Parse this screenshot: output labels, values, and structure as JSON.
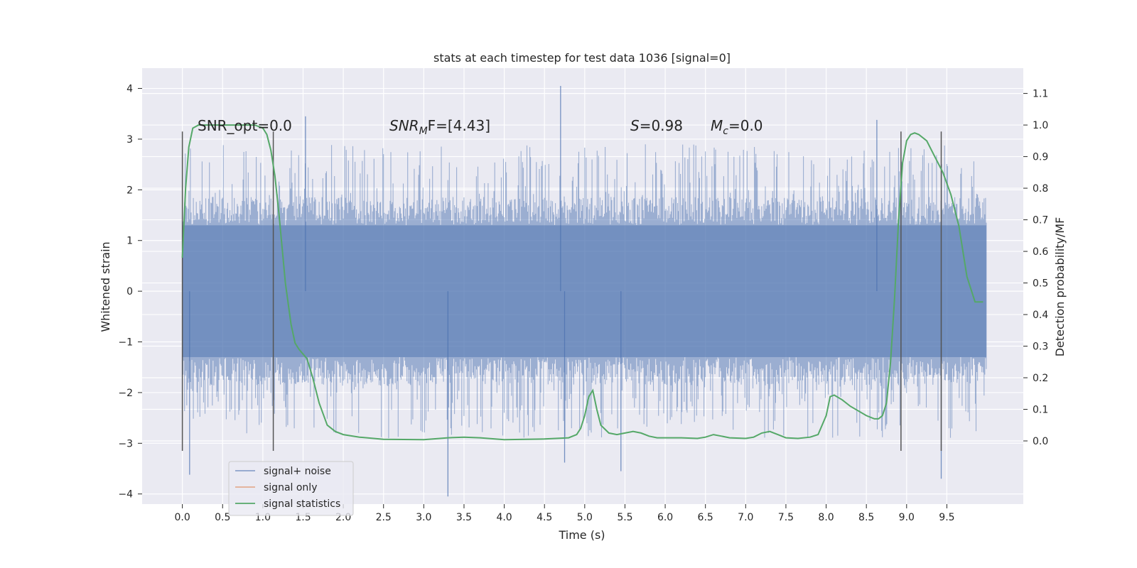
{
  "chart_data": {
    "type": "line",
    "title": "stats at each timestep for test data 1036 [signal=0]",
    "xlabel": "Time (s)",
    "ylabel": "Whitened strain",
    "y2label": "Detection probability/MF",
    "xlim": [
      -0.5,
      10.45
    ],
    "ylim": [
      -4.2,
      4.4
    ],
    "y2lim": [
      -0.2,
      1.18
    ],
    "x_ticks": [
      "0.0",
      "0.5",
      "1.0",
      "1.5",
      "2.0",
      "2.5",
      "3.0",
      "3.5",
      "4.0",
      "4.5",
      "5.0",
      "5.5",
      "6.0",
      "6.5",
      "7.0",
      "7.5",
      "8.0",
      "8.5",
      "9.0",
      "9.5"
    ],
    "x_tick_values": [
      0.0,
      0.5,
      1.0,
      1.5,
      2.0,
      2.5,
      3.0,
      3.5,
      4.0,
      4.5,
      5.0,
      5.5,
      6.0,
      6.5,
      7.0,
      7.5,
      8.0,
      8.5,
      9.0,
      9.5
    ],
    "y_ticks": [
      "−4",
      "−3",
      "−2",
      "−1",
      "0",
      "1",
      "2",
      "3",
      "4"
    ],
    "y_tick_values": [
      -4,
      -3,
      -2,
      -1,
      0,
      1,
      2,
      3,
      4
    ],
    "y2_ticks": [
      "0.0",
      "0.1",
      "0.2",
      "0.3",
      "0.4",
      "0.5",
      "0.6",
      "0.7",
      "0.8",
      "0.9",
      "1.0",
      "1.1"
    ],
    "y2_tick_values": [
      0.0,
      0.1,
      0.2,
      0.3,
      0.4,
      0.5,
      0.6,
      0.7,
      0.8,
      0.9,
      1.0,
      1.1
    ],
    "grid": true,
    "annotations": [
      {
        "id": "snr-opt",
        "text": "SNR_opt=0.0",
        "x": 0.2,
        "y": 3.15
      },
      {
        "id": "snr-mf",
        "text": "SNRMF=[4.43]",
        "x": 2.6,
        "y": 3.15
      },
      {
        "id": "s-value",
        "text": "S=0.98",
        "x": 5.6,
        "y": 3.15
      },
      {
        "id": "mc-value",
        "text": "Mc=0.0",
        "x": 6.6,
        "y": 3.15
      }
    ],
    "annotation_parts": {
      "snr_mf_main": "SNR",
      "snr_mf_sub": "M",
      "snr_mf_rest": "F=[4.43]",
      "s_sym": "S",
      "s_rest": "=0.98",
      "mc_sym": "M",
      "mc_sub": "c",
      "mc_rest": "=0.0"
    },
    "vertical_markers_x": [
      0.0,
      1.13,
      8.93,
      9.43
    ],
    "vertical_markers_range": [
      -3.15,
      3.15
    ],
    "series": [
      {
        "name": "signal+ noise",
        "color": "#4c72b0",
        "opacity": 0.5,
        "x_range": [
          0.0,
          9.99
        ],
        "band_min": -1.3,
        "band_max": 1.3,
        "envelope_up": 2.9,
        "envelope_down": -2.9,
        "peaks": [
          {
            "x": 4.7,
            "y": 4.05
          },
          {
            "x": 1.53,
            "y": 3.45
          },
          {
            "x": 8.63,
            "y": 3.38
          },
          {
            "x": 3.3,
            "y": -4.05
          },
          {
            "x": 9.43,
            "y": -3.7
          },
          {
            "x": 0.09,
            "y": -3.62
          },
          {
            "x": 4.75,
            "y": -3.38
          },
          {
            "x": 5.45,
            "y": -3.55
          }
        ]
      },
      {
        "name": "signal only",
        "color": "#dd8452",
        "values": []
      },
      {
        "name": "signal statistics",
        "color": "#55a868",
        "axis": "right",
        "x": [
          0.0,
          0.04,
          0.08,
          0.13,
          0.2,
          0.3,
          0.5,
          0.7,
          0.9,
          1.0,
          1.05,
          1.1,
          1.15,
          1.2,
          1.28,
          1.35,
          1.4,
          1.45,
          1.55,
          1.62,
          1.7,
          1.8,
          1.9,
          2.0,
          2.2,
          2.5,
          3.0,
          3.3,
          3.5,
          3.7,
          4.0,
          4.5,
          4.8,
          4.9,
          4.95,
          5.0,
          5.05,
          5.1,
          5.15,
          5.2,
          5.3,
          5.4,
          5.5,
          5.6,
          5.7,
          5.8,
          5.9,
          6.0,
          6.2,
          6.4,
          6.5,
          6.6,
          6.7,
          6.8,
          7.0,
          7.1,
          7.2,
          7.3,
          7.4,
          7.5,
          7.65,
          7.8,
          7.9,
          8.0,
          8.05,
          8.1,
          8.2,
          8.3,
          8.5,
          8.6,
          8.65,
          8.7,
          8.75,
          8.8,
          8.85,
          8.9,
          8.95,
          9.0,
          9.05,
          9.1,
          9.15,
          9.25,
          9.35,
          9.45,
          9.55,
          9.65,
          9.75,
          9.85,
          9.95
        ],
        "values": [
          0.58,
          0.8,
          0.93,
          0.99,
          1.0,
          1.0,
          1.0,
          1.0,
          1.0,
          0.99,
          0.97,
          0.92,
          0.84,
          0.72,
          0.5,
          0.37,
          0.31,
          0.29,
          0.26,
          0.2,
          0.12,
          0.05,
          0.03,
          0.02,
          0.012,
          0.005,
          0.004,
          0.01,
          0.012,
          0.01,
          0.004,
          0.006,
          0.01,
          0.02,
          0.04,
          0.08,
          0.14,
          0.16,
          0.1,
          0.05,
          0.025,
          0.02,
          0.025,
          0.03,
          0.025,
          0.015,
          0.01,
          0.01,
          0.01,
          0.008,
          0.012,
          0.02,
          0.015,
          0.01,
          0.008,
          0.012,
          0.025,
          0.03,
          0.02,
          0.01,
          0.008,
          0.012,
          0.02,
          0.08,
          0.14,
          0.145,
          0.13,
          0.11,
          0.08,
          0.07,
          0.07,
          0.08,
          0.12,
          0.25,
          0.45,
          0.7,
          0.88,
          0.95,
          0.97,
          0.975,
          0.97,
          0.95,
          0.9,
          0.85,
          0.78,
          0.68,
          0.52,
          0.44,
          0.44
        ]
      }
    ],
    "legend": {
      "position": "lower-left",
      "entries": [
        "signal+ noise",
        "signal only",
        "signal statistics"
      ]
    }
  }
}
